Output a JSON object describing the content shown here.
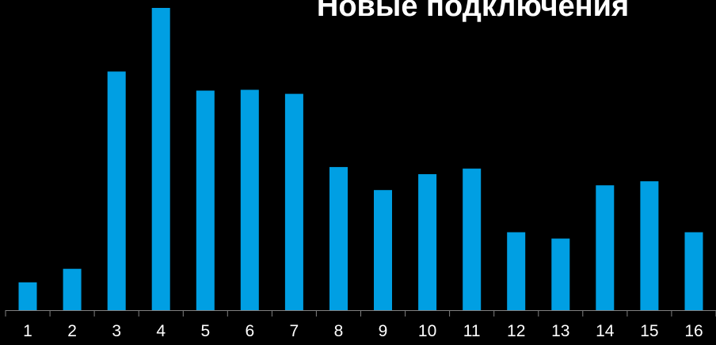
{
  "chart_data": {
    "type": "bar",
    "title": "Новые подключения",
    "xlabel": "",
    "ylabel": "",
    "categories": [
      "1",
      "2",
      "3",
      "4",
      "5",
      "6",
      "7",
      "8",
      "9",
      "10",
      "11",
      "12",
      "13",
      "14",
      "15",
      "16"
    ],
    "values": [
      35,
      52,
      300,
      380,
      276,
      277,
      272,
      180,
      151,
      171,
      178,
      98,
      90,
      157,
      162,
      98
    ],
    "ylim": [
      0,
      380
    ],
    "grid": false,
    "legend": "none",
    "colors": {
      "bar": "#009FE3",
      "background": "#000000",
      "axis": "#808080",
      "text": "#FFFFFF"
    }
  }
}
